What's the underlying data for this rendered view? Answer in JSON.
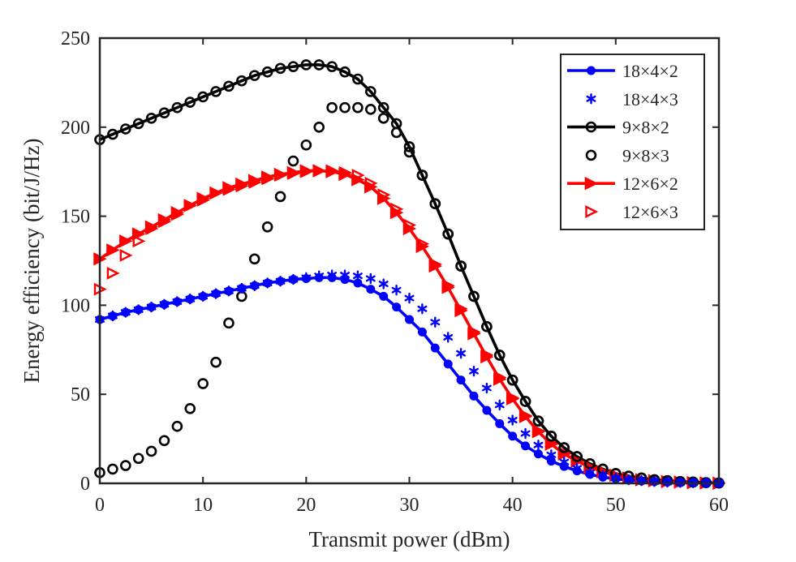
{
  "chart_data": {
    "type": "line",
    "title": "",
    "xlabel": "Transmit power (dBm)",
    "ylabel": "Energy efficiency (bit/J/Hz)",
    "xlim": [
      0,
      60
    ],
    "ylim": [
      0,
      250
    ],
    "xticks": [
      0,
      10,
      20,
      30,
      40,
      50,
      60
    ],
    "yticks": [
      0,
      50,
      100,
      150,
      200,
      250
    ],
    "xtick_labels": [
      "0",
      "10",
      "20",
      "30",
      "40",
      "50",
      "60"
    ],
    "ytick_labels": [
      "0",
      "50",
      "100",
      "150",
      "200",
      "250"
    ],
    "grid": false,
    "legend_position": "top-right",
    "x": [
      0,
      1.25,
      2.5,
      3.75,
      5,
      6.25,
      7.5,
      8.75,
      10,
      11.25,
      12.5,
      13.75,
      15,
      16.25,
      17.5,
      18.75,
      20,
      21.25,
      22.5,
      23.75,
      25,
      26.25,
      27.5,
      28.75,
      30,
      31.25,
      32.5,
      33.75,
      35,
      36.25,
      37.5,
      38.75,
      40,
      41.25,
      42.5,
      43.75,
      45,
      46.25,
      47.5,
      48.75,
      50,
      51.25,
      52.5,
      53.75,
      55,
      56.25,
      57.5,
      58.75,
      60
    ],
    "series": [
      {
        "name": "18×4×2",
        "color": "#0000ff",
        "line": true,
        "marker": "circle-filled",
        "values": [
          92,
          94,
          96,
          97.5,
          99,
          100.5,
          102,
          103.5,
          105,
          106.5,
          108,
          109.5,
          111,
          112.5,
          113.5,
          114.5,
          115,
          115.5,
          115.5,
          114.5,
          112.5,
          109,
          105,
          99,
          92,
          85,
          76,
          67,
          58,
          49,
          41,
          33.5,
          26.5,
          21,
          16.5,
          12.5,
          9.5,
          7,
          5,
          3.5,
          2.5,
          1.8,
          1.3,
          1,
          0.7,
          0.5,
          0.3,
          0.2,
          0.1
        ]
      },
      {
        "name": "18×4×3",
        "color": "#0000ff",
        "line": false,
        "marker": "asterisk",
        "values": [
          92,
          94,
          96,
          97.5,
          99,
          100.5,
          102,
          103.5,
          105,
          106.5,
          108,
          109.5,
          111,
          112.5,
          113.5,
          114.5,
          115.5,
          116.5,
          117,
          117,
          116.5,
          115,
          112,
          108.5,
          104,
          98,
          90.5,
          82,
          73,
          63,
          53.5,
          44,
          35.5,
          28,
          21.5,
          16,
          12,
          8.5,
          6,
          4.5,
          3,
          2,
          1.5,
          1,
          0.7,
          0.5,
          0.3,
          0.2,
          0.1
        ]
      },
      {
        "name": "9×8×2",
        "color": "#000000",
        "line": true,
        "marker": "circle-open",
        "values": [
          193,
          196,
          199,
          202,
          205,
          208,
          211,
          214,
          217,
          220,
          223,
          226,
          229,
          231,
          233,
          234,
          235,
          235,
          234,
          231,
          227,
          220,
          211,
          202,
          189,
          173,
          157,
          140,
          122,
          105,
          88,
          72,
          58,
          46,
          35,
          26.5,
          20,
          15,
          11,
          8,
          5.5,
          4,
          3,
          2,
          1.5,
          1,
          0.7,
          0.4,
          0.2
        ]
      },
      {
        "name": "9×8×3",
        "color": "#000000",
        "line": false,
        "marker": "circle-open",
        "values": [
          6,
          8,
          10,
          14,
          18,
          24,
          32,
          42,
          56,
          68,
          90,
          105,
          126,
          144,
          161,
          181,
          190,
          200,
          211,
          211,
          211,
          210,
          205,
          197,
          186,
          173,
          157,
          140,
          122,
          105,
          88,
          72,
          58,
          46,
          35,
          26.5,
          20,
          15,
          11,
          8,
          5.5,
          4,
          3,
          2,
          1.5,
          1,
          0.7,
          0.4,
          0.2
        ]
      },
      {
        "name": "12×6×2",
        "color": "#ff0000",
        "line": true,
        "marker": "triangle-right-filled",
        "values": [
          126,
          131,
          136,
          140,
          144,
          148,
          152,
          156,
          160,
          163,
          166,
          168,
          170,
          172,
          173.5,
          174.5,
          175.5,
          175.5,
          175,
          173.5,
          170.5,
          166.5,
          160,
          152,
          143,
          133,
          122,
          110,
          97,
          84,
          71,
          58.5,
          47.5,
          37.5,
          29,
          22,
          16.5,
          12.5,
          9,
          6.5,
          4.5,
          3,
          2,
          1.5,
          1,
          0.7,
          0.4,
          0.2,
          0.1
        ]
      },
      {
        "name": "12×6×3",
        "color": "#ff0000",
        "line": false,
        "marker": "triangle-right-open",
        "values": [
          109,
          118,
          128,
          136,
          143,
          147,
          151,
          156,
          159,
          163,
          165,
          167,
          169,
          171,
          173,
          174,
          175,
          175.5,
          175.5,
          174.5,
          173,
          168.5,
          162,
          154,
          145,
          134.5,
          123,
          111,
          98,
          85,
          72,
          59.5,
          48,
          38,
          29.5,
          22.5,
          17,
          12.5,
          9,
          6.5,
          4.5,
          3,
          2,
          1.5,
          1,
          0.7,
          0.4,
          0.2,
          0.1
        ]
      }
    ]
  }
}
